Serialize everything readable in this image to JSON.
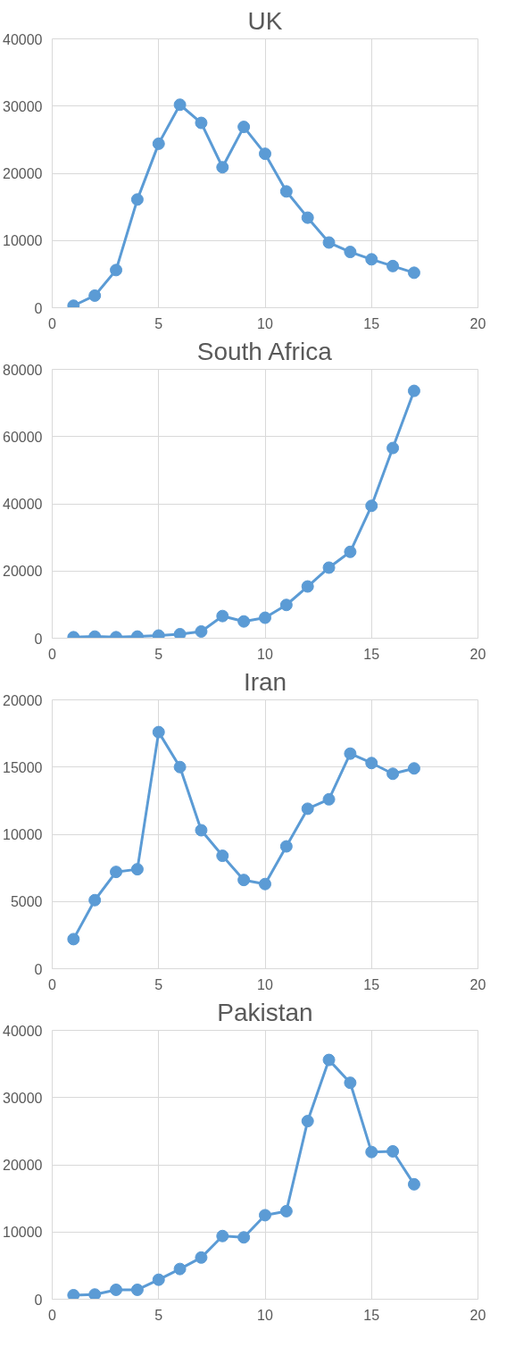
{
  "chart_data": [
    {
      "type": "line",
      "title": "UK",
      "x": [
        1,
        2,
        3,
        4,
        5,
        6,
        7,
        8,
        9,
        10,
        11,
        12,
        13,
        14,
        15,
        16,
        17
      ],
      "series": [
        {
          "color": "#5b9bd5",
          "values": [
            300,
            1800,
            5600,
            16100,
            24400,
            30200,
            27500,
            20900,
            26900,
            22900,
            17300,
            13400,
            9700,
            8300,
            7200,
            6200,
            5200
          ]
        }
      ],
      "xlim": [
        0,
        20
      ],
      "xticks": [
        0,
        5,
        10,
        15,
        20
      ],
      "ylim": [
        0,
        40000
      ],
      "yticks": [
        0,
        10000,
        20000,
        30000,
        40000
      ],
      "grid": true,
      "marker": "circle"
    },
    {
      "type": "line",
      "title": "South Africa",
      "x": [
        1,
        2,
        3,
        4,
        5,
        6,
        7,
        8,
        9,
        10,
        11,
        12,
        13,
        14,
        15,
        16,
        17
      ],
      "series": [
        {
          "color": "#5b9bd5",
          "values": [
            300,
            500,
            300,
            500,
            800,
            1200,
            2000,
            6600,
            5000,
            6100,
            9900,
            15400,
            21000,
            25700,
            39400,
            56600,
            73600
          ]
        }
      ],
      "xlim": [
        0,
        20
      ],
      "xticks": [
        0,
        5,
        10,
        15,
        20
      ],
      "ylim": [
        0,
        80000
      ],
      "yticks": [
        0,
        20000,
        40000,
        60000,
        80000
      ],
      "grid": true,
      "marker": "circle"
    },
    {
      "type": "line",
      "title": "Iran",
      "x": [
        1,
        2,
        3,
        4,
        5,
        6,
        7,
        8,
        9,
        10,
        11,
        12,
        13,
        14,
        15,
        16,
        17
      ],
      "series": [
        {
          "color": "#5b9bd5",
          "values": [
            2200,
            5100,
            7200,
            7400,
            17600,
            15000,
            10300,
            8400,
            6600,
            6300,
            9100,
            11900,
            12600,
            16000,
            15300,
            14500,
            14900
          ]
        }
      ],
      "xlim": [
        0,
        20
      ],
      "xticks": [
        0,
        5,
        10,
        15,
        20
      ],
      "ylim": [
        0,
        20000
      ],
      "yticks": [
        0,
        5000,
        10000,
        15000,
        20000
      ],
      "grid": true,
      "marker": "circle"
    },
    {
      "type": "line",
      "title": "Pakistan",
      "x": [
        1,
        2,
        3,
        4,
        5,
        6,
        7,
        8,
        9,
        10,
        11,
        12,
        13,
        14,
        15,
        16,
        17
      ],
      "series": [
        {
          "color": "#5b9bd5",
          "values": [
            600,
            700,
            1400,
            1400,
            2900,
            4500,
            6200,
            9400,
            9200,
            12500,
            13100,
            26500,
            35600,
            32200,
            21900,
            22000,
            17100
          ]
        }
      ],
      "xlim": [
        0,
        20
      ],
      "xticks": [
        0,
        5,
        10,
        15,
        20
      ],
      "ylim": [
        0,
        40000
      ],
      "yticks": [
        0,
        10000,
        20000,
        30000,
        40000
      ],
      "grid": true,
      "marker": "circle"
    }
  ]
}
